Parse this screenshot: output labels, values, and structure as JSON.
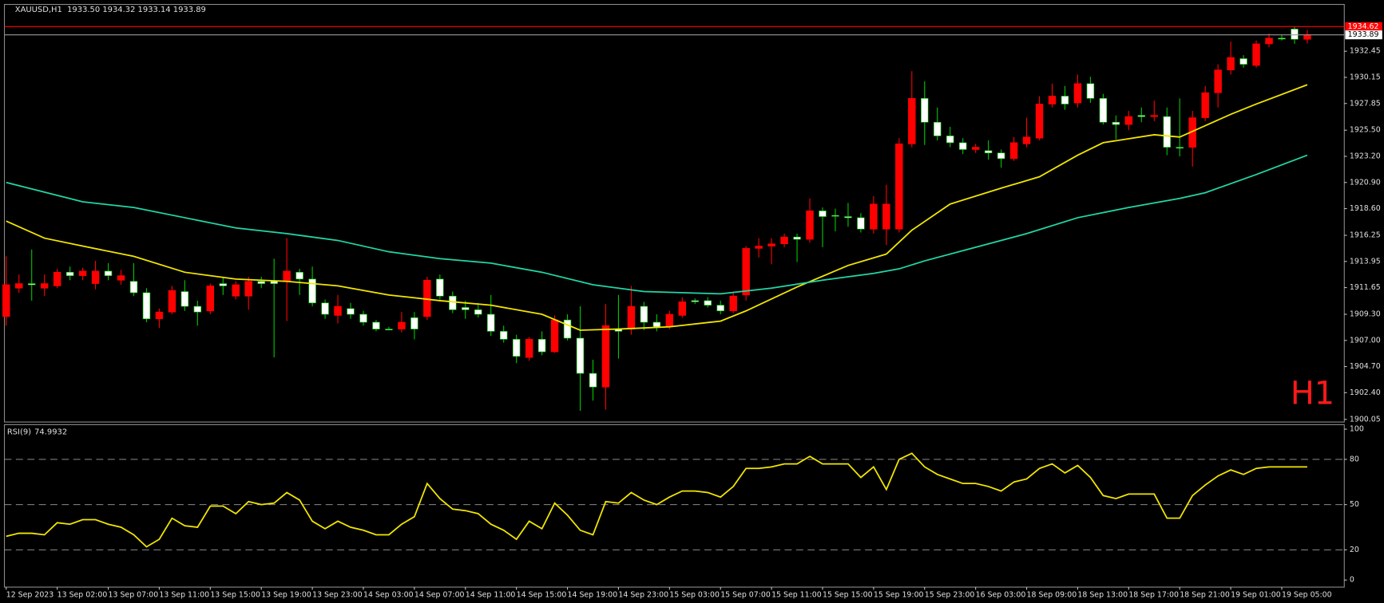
{
  "chart_data": [
    {
      "type": "candlestick",
      "title": "XAUUSD,H1  1933.50 1934.32 1933.14 1933.89",
      "annotation": "H1",
      "xlim": [
        -0.14,
        104.9
      ],
      "ylim": [
        1899.82,
        1936.57
      ],
      "yticks": [
        {
          "value": 1900.05,
          "label": "1900.05"
        },
        {
          "value": 1902.4,
          "label": "1902.40"
        },
        {
          "value": 1904.7,
          "label": "1904.70"
        },
        {
          "value": 1907,
          "label": "1907.00"
        },
        {
          "value": 1909.3,
          "label": "1909.30"
        },
        1911.65,
        1913.95,
        1916.25,
        {
          "value": 1918.6,
          "label": "1918.60"
        },
        {
          "value": 1920.9,
          "label": "1920.90"
        },
        {
          "value": 1923.2,
          "label": "1923.20"
        },
        {
          "value": 1925.5,
          "label": "1925.50"
        },
        1927.85,
        1930.15,
        1932.45
      ],
      "colors": {
        "up_body": "#ff0000",
        "up_wick": "#ff0000",
        "down_body": "#ffffff",
        "down_wick": "#00c800"
      },
      "candles": {
        "open": [
          1909.1,
          1911.6,
          1912.0,
          1911.6,
          1911.8,
          1913.0,
          1912.7,
          1912.0,
          1913.1,
          1912.3,
          1912.2,
          1911.2,
          1908.9,
          1909.5,
          1911.3,
          1910.0,
          1909.6,
          1912.0,
          1910.9,
          1910.9,
          1912.2,
          1912.2,
          1912.2,
          1913.0,
          1912.4,
          1910.3,
          1909.2,
          1909.8,
          1909.3,
          1908.6,
          1908.0,
          1908.0,
          1909.0,
          1909.1,
          1912.4,
          1910.9,
          1909.9,
          1909.7,
          1909.3,
          1907.8,
          1907.1,
          1905.5,
          1907.1,
          1906.0,
          1908.8,
          1907.2,
          1904.1,
          1902.9,
          1908.0,
          1908.0,
          1910.0,
          1908.6,
          1908.2,
          1909.2,
          1910.5,
          1910.5,
          1910.1,
          1909.6,
          1911.0,
          1915.1,
          1915.3,
          1915.5,
          1916.1,
          1915.9,
          1918.4,
          1918.0,
          1917.9,
          1917.8,
          1916.8,
          1916.8,
          1916.8,
          1924.3,
          1928.3,
          1926.2,
          1925.0,
          1924.4,
          1923.8,
          1923.7,
          1923.5,
          1923.0,
          1924.3,
          1924.8,
          1927.8,
          1928.5,
          1927.9,
          1929.6,
          1928.3,
          1926.2,
          1926.0,
          1926.8,
          1926.7,
          1926.7,
          1924.0,
          1924.0,
          1926.6,
          1928.8,
          1930.8,
          1931.8,
          1931.2,
          1933.1,
          1933.6,
          1934.4,
          1933.5
        ],
        "high": [
          1914.4,
          1912.8,
          1915.0,
          1912.8,
          1913.3,
          1913.5,
          1913.4,
          1914.0,
          1913.8,
          1913.2,
          1913.8,
          1911.6,
          1909.8,
          1911.8,
          1912.3,
          1910.5,
          1912.0,
          1912.5,
          1912.2,
          1912.6,
          1912.6,
          1914.2,
          1916.0,
          1913.3,
          1913.5,
          1910.6,
          1911.0,
          1910.3,
          1909.6,
          1908.8,
          1908.2,
          1909.5,
          1909.5,
          1912.6,
          1912.8,
          1911.3,
          1910.5,
          1910.3,
          1911.0,
          1908.3,
          1907.5,
          1907.3,
          1907.8,
          1909.2,
          1909.3,
          1910.0,
          1905.3,
          1910.2,
          1911.0,
          1911.8,
          1910.4,
          1909.3,
          1909.6,
          1910.8,
          1910.7,
          1910.8,
          1910.5,
          1911.3,
          1915.3,
          1916.0,
          1916.0,
          1916.4,
          1916.4,
          1919.5,
          1918.7,
          1918.6,
          1919.1,
          1918.2,
          1919.7,
          1920.7,
          1924.8,
          1930.7,
          1929.8,
          1927.5,
          1925.8,
          1924.8,
          1924.3,
          1924.6,
          1923.8,
          1924.9,
          1926.6,
          1928.5,
          1929.6,
          1929.4,
          1930.4,
          1930.2,
          1928.7,
          1926.8,
          1927.2,
          1927.5,
          1928.1,
          1927.5,
          1928.3,
          1927.2,
          1929.4,
          1931.3,
          1933.3,
          1932.1,
          1933.4,
          1934.0,
          1933.9,
          1934.6,
          1934.32
        ],
        "low": [
          1908.3,
          1911.2,
          1910.5,
          1910.9,
          1911.6,
          1912.3,
          1912.3,
          1911.5,
          1912.3,
          1911.9,
          1910.9,
          1908.6,
          1908.1,
          1909.3,
          1909.6,
          1908.3,
          1909.3,
          1911.0,
          1910.6,
          1909.7,
          1911.6,
          1905.5,
          1908.7,
          1911.0,
          1910.0,
          1908.9,
          1908.5,
          1908.9,
          1908.3,
          1907.8,
          1907.9,
          1907.7,
          1907.1,
          1908.8,
          1910.6,
          1909.4,
          1908.9,
          1909.0,
          1907.4,
          1906.8,
          1905.0,
          1905.2,
          1905.7,
          1905.9,
          1907.0,
          1900.8,
          1901.7,
          1900.9,
          1905.4,
          1907.5,
          1907.9,
          1907.8,
          1908.0,
          1909.0,
          1910.2,
          1909.9,
          1909.3,
          1909.4,
          1910.5,
          1914.3,
          1913.7,
          1915.2,
          1913.9,
          1915.6,
          1915.2,
          1916.6,
          1917.0,
          1916.5,
          1916.4,
          1915.4,
          1916.5,
          1924.0,
          1924.2,
          1924.6,
          1924.0,
          1923.4,
          1923.5,
          1922.9,
          1922.2,
          1922.8,
          1924.0,
          1924.6,
          1927.5,
          1927.3,
          1927.5,
          1927.9,
          1926.0,
          1924.7,
          1925.5,
          1926.2,
          1926.3,
          1923.3,
          1923.2,
          1922.3,
          1926.3,
          1927.5,
          1930.4,
          1931.0,
          1931.0,
          1932.8,
          1933.4,
          1933.1,
          1933.14
        ],
        "close": [
          1911.9,
          1912.0,
          1911.9,
          1912.0,
          1913.0,
          1912.7,
          1913.1,
          1913.1,
          1912.7,
          1912.7,
          1911.2,
          1908.9,
          1909.5,
          1911.4,
          1910.0,
          1909.5,
          1911.8,
          1911.8,
          1911.9,
          1912.2,
          1912.0,
          1912.0,
          1913.1,
          1912.4,
          1910.3,
          1909.3,
          1910.0,
          1909.3,
          1908.6,
          1908.0,
          1908.0,
          1908.6,
          1908.0,
          1912.3,
          1910.9,
          1909.7,
          1909.7,
          1909.3,
          1907.8,
          1907.1,
          1905.6,
          1907.1,
          1906.0,
          1908.8,
          1907.2,
          1904.1,
          1902.9,
          1908.3,
          1907.8,
          1910.0,
          1908.6,
          1908.2,
          1909.3,
          1910.4,
          1910.4,
          1910.1,
          1909.6,
          1910.9,
          1915.1,
          1915.3,
          1915.5,
          1916.1,
          1915.9,
          1918.4,
          1917.9,
          1918.0,
          1917.8,
          1916.8,
          1919.0,
          1919.0,
          1924.3,
          1928.3,
          1926.2,
          1925.0,
          1924.4,
          1923.8,
          1924.0,
          1923.5,
          1923.0,
          1924.4,
          1924.9,
          1927.8,
          1928.5,
          1927.8,
          1929.6,
          1928.3,
          1926.2,
          1926.0,
          1926.7,
          1926.7,
          1926.8,
          1924.0,
          1924.0,
          1926.6,
          1928.8,
          1930.8,
          1931.9,
          1931.3,
          1933.1,
          1933.6,
          1933.6,
          1933.5,
          1933.89
        ]
      },
      "series": [
        {
          "color": "#f2e600",
          "x": [
            0,
            3,
            6,
            10,
            14,
            18,
            22,
            26,
            30,
            34,
            38,
            42,
            45,
            48,
            52,
            56,
            58,
            62,
            66,
            69,
            71,
            74,
            78,
            81,
            84,
            86,
            90,
            92,
            94,
            96,
            98,
            102
          ],
          "values": [
            1917.5,
            1916.0,
            1915.3,
            1914.4,
            1913.0,
            1912.4,
            1912.2,
            1911.8,
            1911.0,
            1910.5,
            1910.1,
            1909.3,
            1907.9,
            1908.0,
            1908.2,
            1908.7,
            1909.6,
            1911.7,
            1913.6,
            1914.6,
            1916.7,
            1919.0,
            1920.4,
            1921.4,
            1923.3,
            1924.4,
            1925.1,
            1924.9,
            1925.9,
            1926.9,
            1927.8,
            1929.5
          ]
        },
        {
          "color": "#22d6a6",
          "x": [
            0,
            6,
            10,
            14,
            18,
            22,
            26,
            30,
            34,
            38,
            42,
            46,
            50,
            56,
            60,
            64,
            68,
            70,
            72,
            76,
            80,
            84,
            88,
            92,
            94,
            98,
            102
          ],
          "values": [
            1920.9,
            1919.2,
            1918.7,
            1917.8,
            1916.9,
            1916.4,
            1915.8,
            1914.8,
            1914.2,
            1913.8,
            1913.0,
            1911.9,
            1911.3,
            1911.1,
            1911.6,
            1912.3,
            1912.9,
            1913.3,
            1914.0,
            1915.2,
            1916.4,
            1917.8,
            1918.7,
            1919.5,
            1920.0,
            1921.6,
            1923.3
          ]
        }
      ],
      "price_lines": [
        {
          "value": 1934.62,
          "color": "#ff0000"
        },
        {
          "value": 1933.89,
          "color": "#9a9a9a"
        }
      ]
    },
    {
      "type": "line",
      "title": "RSI(9)",
      "xlim": [
        -0.14,
        104.9
      ],
      "ylim": [
        -4.7,
        103
      ],
      "yticks": [
        0,
        20,
        50,
        80,
        100
      ],
      "levels": [
        20,
        50,
        80
      ],
      "xticks": [
        {
          "value": 0,
          "label": "12 Sep 2023"
        },
        {
          "value": 4,
          "label": "13 Sep 02:00"
        },
        {
          "value": 8,
          "label": "13 Sep 07:00"
        },
        {
          "value": 12,
          "label": "13 Sep 11:00"
        },
        {
          "value": 16,
          "label": "13 Sep 15:00"
        },
        {
          "value": 20,
          "label": "13 Sep 19:00"
        },
        {
          "value": 24,
          "label": "13 Sep 23:00"
        },
        {
          "value": 28,
          "label": "14 Sep 03:00"
        },
        {
          "value": 32,
          "label": "14 Sep 07:00"
        },
        {
          "value": 36,
          "label": "14 Sep 11:00"
        },
        {
          "value": 40,
          "label": "14 Sep 15:00"
        },
        {
          "value": 44,
          "label": "14 Sep 19:00"
        },
        {
          "value": 48,
          "label": "14 Sep 23:00"
        },
        {
          "value": 52,
          "label": "15 Sep 03:00"
        },
        {
          "value": 56,
          "label": "15 Sep 07:00"
        },
        {
          "value": 60,
          "label": "15 Sep 11:00"
        },
        {
          "value": 64,
          "label": "15 Sep 15:00"
        },
        {
          "value": 68,
          "label": "15 Sep 19:00"
        },
        {
          "value": 72,
          "label": "15 Sep 23:00"
        },
        {
          "value": 76,
          "label": "16 Sep 03:00"
        },
        {
          "value": 80,
          "label": "18 Sep 09:00"
        },
        {
          "value": 84,
          "label": "18 Sep 13:00"
        },
        {
          "value": 88,
          "label": "18 Sep 17:00"
        },
        {
          "value": 92,
          "label": "18 Sep 21:00"
        },
        {
          "value": 96,
          "label": "19 Sep 01:00"
        },
        {
          "value": 100,
          "label": "19 Sep 05:00"
        }
      ],
      "series": [
        {
          "color": "#f2e600",
          "values": [
            29,
            31,
            31,
            30,
            38,
            37,
            40,
            40,
            37,
            35,
            30,
            22,
            27,
            41,
            36,
            35,
            49,
            49,
            44,
            52,
            50,
            51,
            58,
            53,
            39,
            34,
            39,
            35,
            33,
            30,
            30,
            37,
            42,
            64,
            54,
            47,
            46,
            44,
            37,
            33,
            27,
            39,
            34,
            51,
            43,
            33,
            30,
            52,
            51,
            58,
            53,
            50,
            55,
            59,
            59,
            58,
            55,
            62,
            74,
            74,
            75,
            77,
            77,
            82,
            77,
            77,
            77,
            68,
            75,
            60,
            80,
            84,
            75,
            70,
            67,
            64,
            64,
            62,
            59,
            65,
            67,
            74,
            77,
            71,
            76,
            68,
            56,
            54,
            57,
            57,
            57,
            41,
            41,
            56,
            63,
            69,
            73,
            70,
            74,
            75,
            75,
            75,
            74.9932
          ]
        }
      ]
    }
  ]
}
